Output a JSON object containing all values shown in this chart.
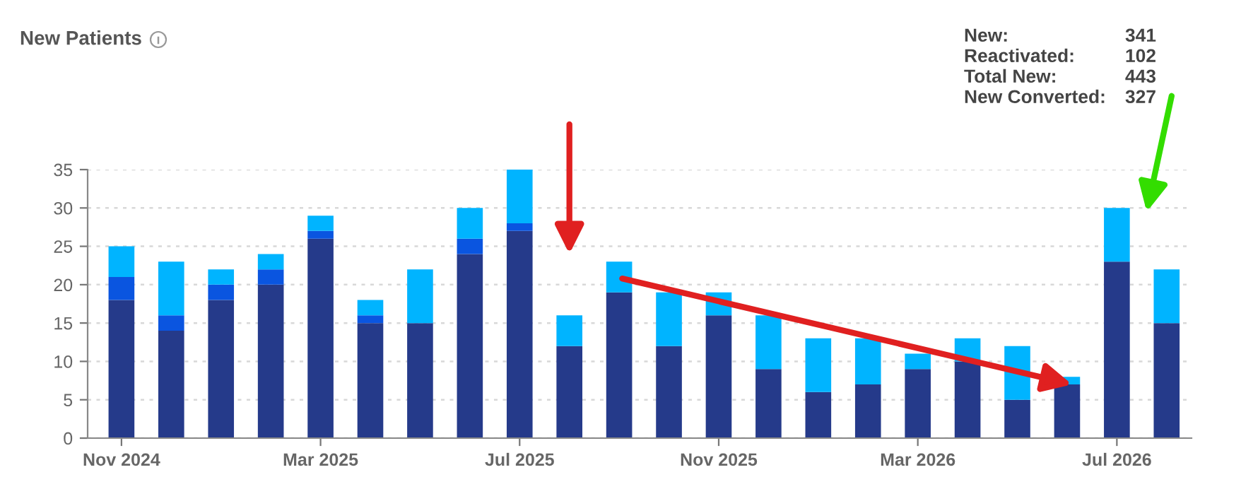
{
  "chart_data": {
    "type": "bar",
    "title": "New Patients",
    "stacked": true,
    "categories": [
      "Nov 2024",
      null,
      null,
      null,
      "Mar 2025",
      null,
      null,
      null,
      "Jul 2025",
      null,
      null,
      null,
      "Nov 2025",
      null,
      null,
      null,
      "Mar 2026",
      null,
      null,
      null,
      "Jul 2026",
      null
    ],
    "series": [
      {
        "color": "#253a8a",
        "values": [
          18,
          14,
          18,
          20,
          26,
          15,
          15,
          24,
          27,
          12,
          19,
          12,
          16,
          9,
          6,
          7,
          9,
          10,
          5,
          7,
          23,
          15
        ]
      },
      {
        "color": "#0a55e0",
        "values": [
          3,
          2,
          2,
          2,
          1,
          1,
          0,
          2,
          1,
          0,
          0,
          0,
          0,
          0,
          0,
          0,
          0,
          0,
          0,
          0,
          0,
          0
        ]
      },
      {
        "color": "#00b4ff",
        "values": [
          4,
          7,
          2,
          2,
          2,
          2,
          7,
          4,
          7,
          4,
          4,
          7,
          3,
          7,
          7,
          6,
          2,
          3,
          7,
          1,
          7,
          7
        ]
      }
    ],
    "ylim": [
      0,
      35
    ],
    "yticks": [
      0,
      5,
      10,
      15,
      20,
      25,
      30,
      35
    ],
    "grid": "y",
    "annotations": [
      "New:",
      "341",
      "Reactivated:",
      "102",
      "Total New:",
      "443",
      "New Converted:",
      "327"
    ]
  }
}
